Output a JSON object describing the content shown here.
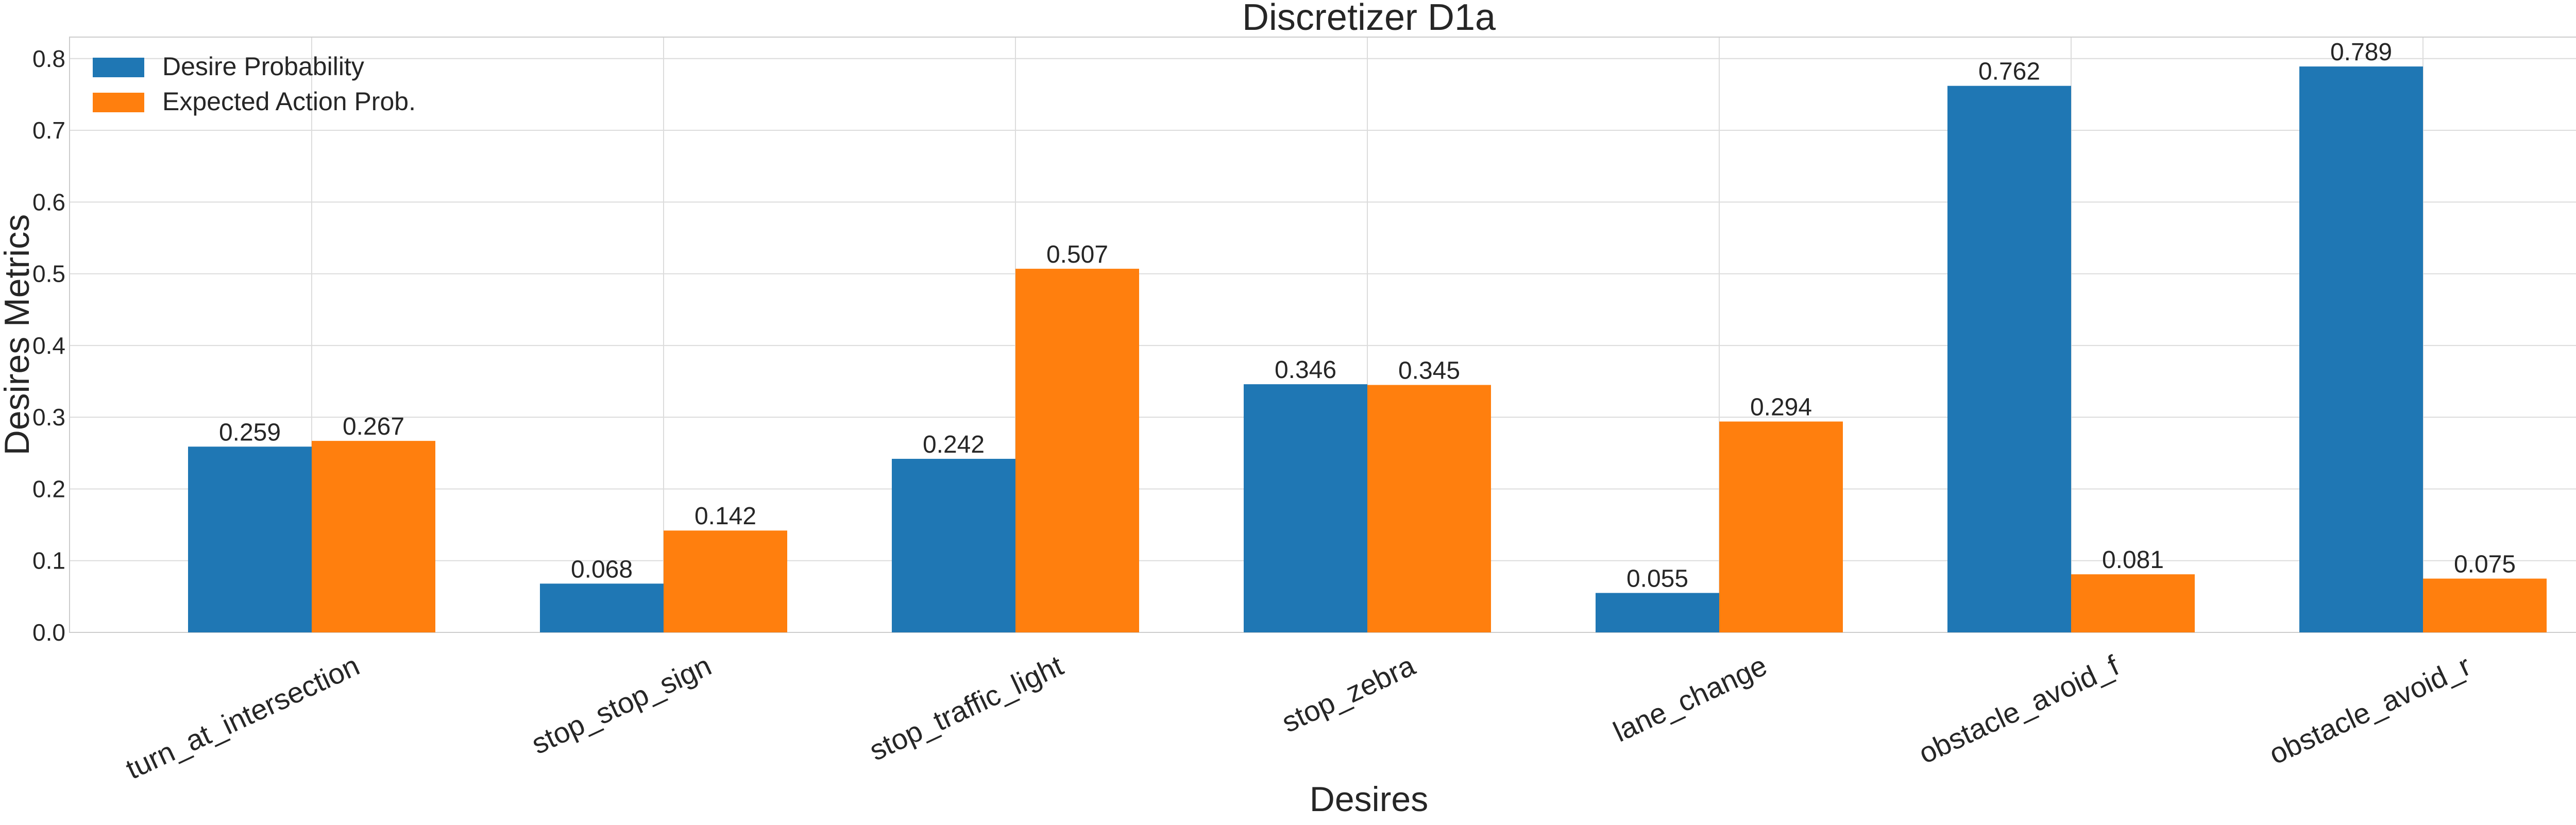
{
  "chart_data": {
    "type": "bar",
    "title": "Discretizer D1a",
    "xlabel": "Desires",
    "ylabel": "Desires Metrics",
    "categories": [
      "turn_at_intersection",
      "stop_stop_sign",
      "stop_traffic_light",
      "stop_zebra",
      "lane_change",
      "obstacle_avoid_f",
      "obstacle_avoid_r"
    ],
    "series": [
      {
        "name": "Desire Probability",
        "color": "#1f77b4",
        "values": [
          0.259,
          0.068,
          0.242,
          0.346,
          0.055,
          0.762,
          0.789
        ],
        "labels": [
          "0.259",
          "0.068",
          "0.242",
          "0.346",
          "0.055",
          "0.762",
          "0.789"
        ]
      },
      {
        "name": "Expected Action Prob.",
        "color": "#ff7f0e",
        "values": [
          0.267,
          0.142,
          0.507,
          0.345,
          0.294,
          0.081,
          0.075
        ],
        "labels": [
          "0.267",
          "0.142",
          "0.507",
          "0.345",
          "0.294",
          "0.081",
          "0.075"
        ]
      }
    ],
    "ylim": [
      0,
      0.83
    ],
    "yticks": [
      "0.0",
      "0.1",
      "0.2",
      "0.3",
      "0.4",
      "0.5",
      "0.6",
      "0.7",
      "0.8"
    ],
    "grid": true,
    "legend_position": "top-left"
  }
}
